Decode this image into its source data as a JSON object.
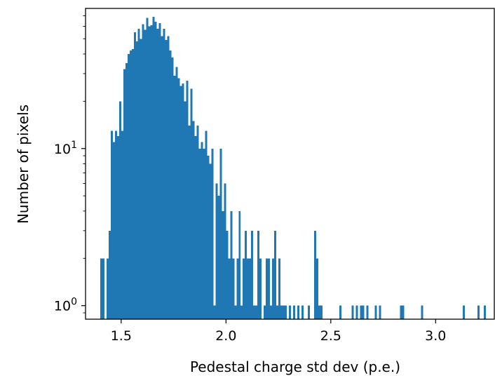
{
  "chart_data": {
    "type": "bar",
    "title": "",
    "xlabel": "Pedestal charge std dev (p.e.)",
    "ylabel": "Number of pixels",
    "yscale": "log",
    "xlim": [
      1.33,
      3.28
    ],
    "ylim": [
      0.82,
      78
    ],
    "bin_width": 0.01,
    "bar_color": "#1f77b4",
    "grid": false,
    "x_ticks": [
      {
        "value": 1.5,
        "label": "1.5"
      },
      {
        "value": 2.0,
        "label": "2.0"
      },
      {
        "value": 2.5,
        "label": "2.5"
      },
      {
        "value": 3.0,
        "label": "3.0"
      }
    ],
    "y_ticks": [
      {
        "value": 1,
        "base": "10",
        "exp": "0"
      },
      {
        "value": 10,
        "base": "10",
        "exp": "1"
      }
    ],
    "bins": [
      [
        1.4,
        2
      ],
      [
        1.41,
        2
      ],
      [
        1.42,
        0
      ],
      [
        1.43,
        2
      ],
      [
        1.44,
        3
      ],
      [
        1.45,
        13
      ],
      [
        1.46,
        11
      ],
      [
        1.47,
        13
      ],
      [
        1.48,
        12
      ],
      [
        1.49,
        20
      ],
      [
        1.5,
        13
      ],
      [
        1.51,
        32
      ],
      [
        1.52,
        35
      ],
      [
        1.53,
        40
      ],
      [
        1.54,
        42
      ],
      [
        1.55,
        43
      ],
      [
        1.56,
        55
      ],
      [
        1.57,
        48
      ],
      [
        1.58,
        58
      ],
      [
        1.59,
        50
      ],
      [
        1.6,
        62
      ],
      [
        1.61,
        57
      ],
      [
        1.62,
        68
      ],
      [
        1.63,
        60
      ],
      [
        1.64,
        61
      ],
      [
        1.65,
        69
      ],
      [
        1.66,
        64
      ],
      [
        1.67,
        58
      ],
      [
        1.68,
        63
      ],
      [
        1.69,
        52
      ],
      [
        1.7,
        58
      ],
      [
        1.71,
        49
      ],
      [
        1.72,
        52
      ],
      [
        1.73,
        42
      ],
      [
        1.74,
        38
      ],
      [
        1.75,
        29
      ],
      [
        1.76,
        33
      ],
      [
        1.77,
        28
      ],
      [
        1.78,
        25
      ],
      [
        1.79,
        26
      ],
      [
        1.8,
        20
      ],
      [
        1.81,
        27
      ],
      [
        1.82,
        14
      ],
      [
        1.83,
        24
      ],
      [
        1.84,
        15
      ],
      [
        1.85,
        12
      ],
      [
        1.86,
        14
      ],
      [
        1.87,
        10
      ],
      [
        1.88,
        11
      ],
      [
        1.89,
        10
      ],
      [
        1.9,
        13
      ],
      [
        1.91,
        9
      ],
      [
        1.92,
        8
      ],
      [
        1.93,
        10
      ],
      [
        1.94,
        1
      ],
      [
        1.95,
        6
      ],
      [
        1.96,
        5
      ],
      [
        1.97,
        10
      ],
      [
        1.98,
        4
      ],
      [
        1.99,
        6
      ],
      [
        2.0,
        3
      ],
      [
        2.01,
        2
      ],
      [
        2.02,
        4
      ],
      [
        2.03,
        2
      ],
      [
        2.04,
        1
      ],
      [
        2.05,
        2
      ],
      [
        2.06,
        4
      ],
      [
        2.07,
        1
      ],
      [
        2.08,
        2
      ],
      [
        2.09,
        3
      ],
      [
        2.1,
        2
      ],
      [
        2.11,
        2
      ],
      [
        2.12,
        3
      ],
      [
        2.13,
        1
      ],
      [
        2.14,
        1
      ],
      [
        2.15,
        3
      ],
      [
        2.16,
        2
      ],
      [
        2.17,
        0
      ],
      [
        2.18,
        1
      ],
      [
        2.19,
        2
      ],
      [
        2.2,
        2
      ],
      [
        2.21,
        1
      ],
      [
        2.22,
        2
      ],
      [
        2.23,
        3
      ],
      [
        2.24,
        1
      ],
      [
        2.25,
        2
      ],
      [
        2.26,
        1
      ],
      [
        2.27,
        1
      ],
      [
        2.28,
        1
      ],
      [
        2.29,
        0
      ],
      [
        2.3,
        1
      ],
      [
        2.31,
        0
      ],
      [
        2.32,
        1
      ],
      [
        2.33,
        0
      ],
      [
        2.34,
        1
      ],
      [
        2.35,
        0
      ],
      [
        2.36,
        1
      ],
      [
        2.37,
        0
      ],
      [
        2.38,
        0
      ],
      [
        2.39,
        1
      ],
      [
        2.4,
        0
      ],
      [
        2.41,
        0
      ],
      [
        2.42,
        3
      ],
      [
        2.43,
        2
      ],
      [
        2.44,
        1
      ],
      [
        2.45,
        1
      ],
      [
        2.54,
        1
      ],
      [
        2.6,
        1
      ],
      [
        2.62,
        1
      ],
      [
        2.64,
        1
      ],
      [
        2.65,
        1
      ],
      [
        2.67,
        1
      ],
      [
        2.71,
        1
      ],
      [
        2.73,
        1
      ],
      [
        2.83,
        1
      ],
      [
        2.84,
        1
      ],
      [
        2.93,
        1
      ],
      [
        3.13,
        1
      ],
      [
        3.2,
        1
      ],
      [
        3.23,
        1
      ]
    ]
  }
}
